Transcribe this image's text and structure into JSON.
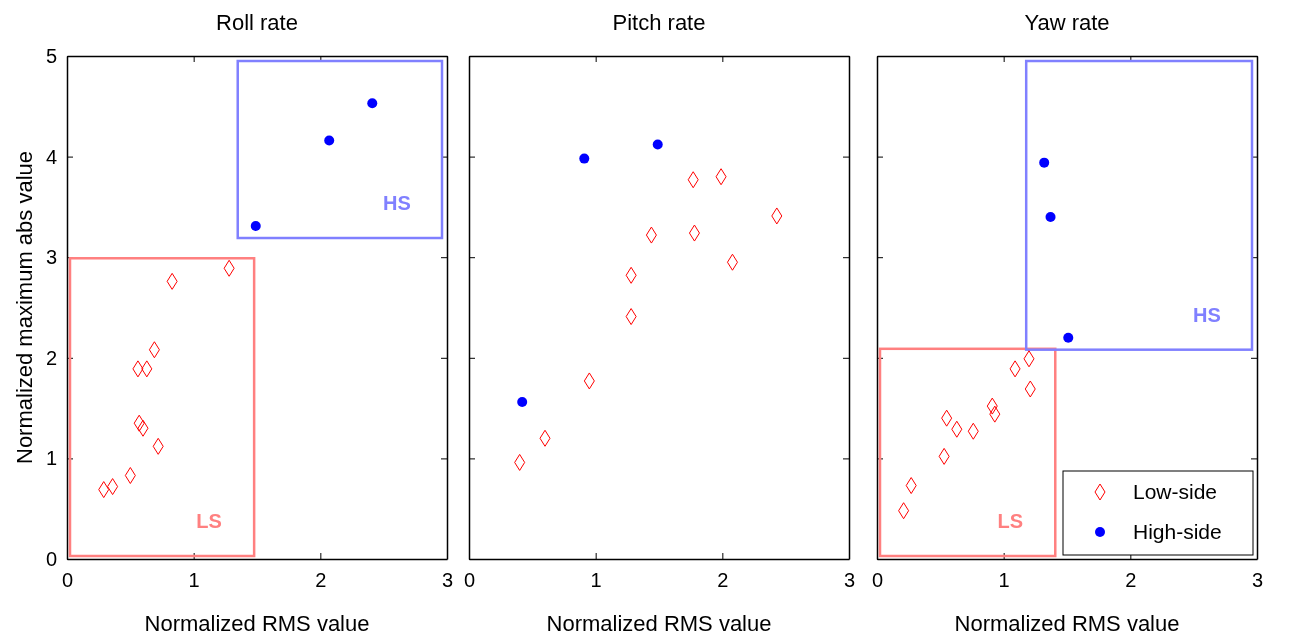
{
  "chart_data": [
    {
      "type": "scatter",
      "title": "Roll rate",
      "xlabel": "Normalized RMS value",
      "ylabel": "Normalized maximum abs value",
      "xlim": [
        0,
        3
      ],
      "ylim": [
        0,
        5
      ],
      "xticks": [
        0,
        1,
        2,
        3
      ],
      "yticks": [
        0,
        1,
        2,
        3,
        4,
        5
      ],
      "grid": false,
      "legend": false,
      "series": [
        {
          "color": "#ff0000",
          "marker": "diamond",
          "x": [
            0.29,
            0.36,
            0.5,
            0.72,
            0.57,
            0.6,
            0.56,
            0.63,
            0.69,
            0.83,
            1.28
          ],
          "values": [
            0.69,
            0.72,
            0.83,
            1.12,
            1.35,
            1.3,
            1.89,
            1.89,
            2.08,
            2.76,
            2.89
          ]
        },
        {
          "color": "#0000ff",
          "marker": "circle",
          "x": [
            1.49,
            2.07,
            2.41
          ],
          "values": [
            3.31,
            4.16,
            4.53
          ]
        }
      ],
      "annotations": [
        "LS",
        "HS"
      ]
    },
    {
      "type": "scatter",
      "title": "Pitch rate",
      "xlabel": "Normalized RMS value",
      "xlim": [
        0,
        3
      ],
      "ylim": [
        0,
        5
      ],
      "xticks": [
        0,
        1,
        2,
        3
      ],
      "yticks": [
        0,
        1,
        2,
        3,
        4,
        5
      ],
      "tick_labels": "x",
      "grid": false,
      "legend": false,
      "series": [
        {
          "color": "#ff0000",
          "marker": "diamond",
          "x": [
            0.4,
            0.6,
            0.95,
            1.28,
            1.28,
            1.44,
            1.77,
            1.78,
            1.99,
            2.08,
            2.43
          ],
          "values": [
            0.96,
            1.2,
            1.77,
            2.41,
            2.82,
            3.22,
            3.77,
            3.24,
            3.8,
            2.95,
            3.41
          ]
        },
        {
          "color": "#0000ff",
          "marker": "circle",
          "x": [
            0.42,
            0.91,
            1.49
          ],
          "values": [
            1.56,
            3.98,
            4.12
          ]
        }
      ]
    },
    {
      "type": "scatter",
      "title": "Yaw rate",
      "xlabel": "Normalized RMS value",
      "xlim": [
        0,
        3
      ],
      "ylim": [
        0,
        5
      ],
      "xticks": [
        0,
        1,
        2,
        3
      ],
      "yticks": [
        0,
        1,
        2,
        3,
        4,
        5
      ],
      "tick_labels": "x",
      "grid": false,
      "legend": "bottom right",
      "series": [
        {
          "name": "Low-side",
          "color": "#ff0000",
          "marker": "diamond",
          "x": [
            0.21,
            0.27,
            0.53,
            0.55,
            0.63,
            0.76,
            0.91,
            0.93,
            1.09,
            1.2,
            1.21
          ],
          "values": [
            0.48,
            0.73,
            1.02,
            1.4,
            1.29,
            1.27,
            1.52,
            1.44,
            1.89,
            1.99,
            1.69
          ]
        },
        {
          "name": "High-side",
          "color": "#0000ff",
          "marker": "circle",
          "x": [
            1.32,
            1.37,
            1.51
          ],
          "values": [
            3.94,
            3.4,
            2.2
          ]
        }
      ],
      "annotations": [
        "LS",
        "HS"
      ]
    }
  ]
}
